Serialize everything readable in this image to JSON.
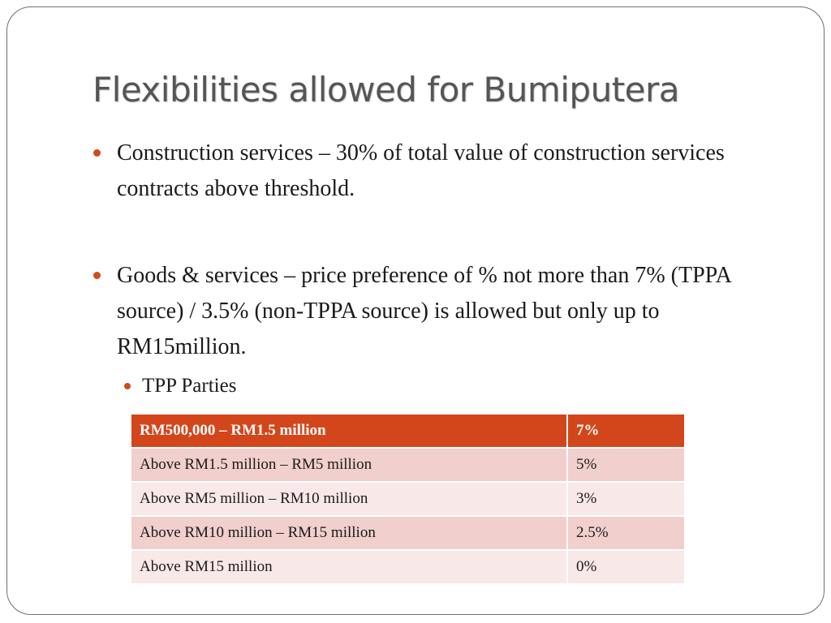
{
  "slide": {
    "title": "Flexibilities allowed for Bumiputera",
    "bullets": [
      "Construction services – 30% of total value of construction services contracts above threshold.",
      "Goods & services – price preference of % not more than 7% (TPPA source) / 3.5% (non-TPPA source) is allowed but only up to RM15million."
    ],
    "sub_bullet": "TPP Parties",
    "table": {
      "header": [
        "RM500,000 – RM1.5 million",
        "7%"
      ],
      "rows": [
        [
          "Above RM1.5 million – RM5 million",
          "5%"
        ],
        [
          "Above RM5 million – RM10 million",
          "3%"
        ],
        [
          "Above RM10 million – RM15 million",
          "2.5%"
        ],
        [
          "Above RM15 million",
          "0%"
        ]
      ]
    }
  },
  "colors": {
    "accent": "#d3461b",
    "title_text": "#555555",
    "row_dark": "#f0cfcc",
    "row_light": "#f8e8e7"
  }
}
